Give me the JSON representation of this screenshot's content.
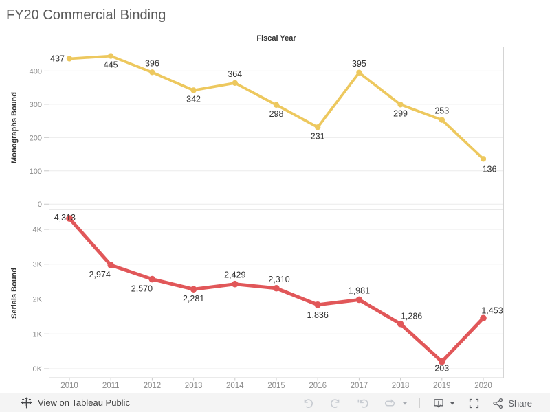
{
  "title": "FY20 Commercial Binding",
  "colors": {
    "monographs_line": "#EDC85E",
    "serials_line": "#E15759",
    "data_label": "#333333",
    "tick_label": "#8a8a8a",
    "gridline": "#ebebeb",
    "panel_border": "#d4d4d4",
    "tick_mark": "#c9c9c9",
    "toolbar_disabled_icon": "#c7cbd1",
    "toolbar_active_icon": "#5e6065"
  },
  "footer": {
    "view_on_label": "View on Tableau Public",
    "share_label": "Share",
    "icons": [
      "tableau-logo",
      "undo",
      "redo",
      "reset",
      "refresh",
      "refresh-caret",
      "separator",
      "download",
      "download-caret",
      "fullscreen",
      "share"
    ]
  },
  "chart_data": [
    {
      "type": "line",
      "panel": "monographs",
      "title": "Fiscal Year",
      "ylabel": "Monographs Bound",
      "categories": [
        "2010",
        "2011",
        "2012",
        "2013",
        "2014",
        "2015",
        "2016",
        "2017",
        "2018",
        "2019",
        "2020"
      ],
      "values": [
        437,
        445,
        396,
        342,
        364,
        298,
        231,
        395,
        299,
        253,
        136
      ],
      "value_labels": [
        "437",
        "445",
        "396",
        "342",
        "364",
        "298",
        "231",
        "395",
        "299",
        "253",
        "136"
      ],
      "yticks": [
        0,
        100,
        200,
        300,
        400
      ],
      "ytick_labels": [
        "0",
        "100",
        "200",
        "300",
        "400"
      ],
      "ylim": [
        -16,
        472
      ],
      "grid": "horizontal",
      "legend": "none",
      "color": "#EDC85E",
      "label_anchors": [
        "end",
        "middle",
        "middle",
        "middle",
        "middle",
        "middle",
        "middle",
        "middle",
        "middle",
        "middle",
        "middle"
      ],
      "label_dx": [
        -7,
        0,
        0,
        0,
        0,
        0,
        0,
        0,
        0,
        0,
        9
      ],
      "label_dy": [
        4,
        17,
        -9,
        17,
        -9,
        17,
        17,
        -9,
        17,
        -9,
        19
      ]
    },
    {
      "type": "line",
      "panel": "serials",
      "ylabel": "Serials Bound",
      "categories": [
        "2010",
        "2011",
        "2012",
        "2013",
        "2014",
        "2015",
        "2016",
        "2017",
        "2018",
        "2019",
        "2020"
      ],
      "values": [
        4313,
        2974,
        2570,
        2281,
        2429,
        2310,
        1836,
        1981,
        1286,
        203,
        1453
      ],
      "value_labels": [
        "4,313",
        "2,974",
        "2,570",
        "2,281",
        "2,429",
        "2,310",
        "1,836",
        "1,981",
        "1,286",
        "203",
        "1,453"
      ],
      "yticks": [
        0,
        1000,
        2000,
        3000,
        4000
      ],
      "ytick_labels": [
        "0K",
        "1K",
        "2K",
        "3K",
        "4K"
      ],
      "ylim": [
        -256,
        4571
      ],
      "grid": "horizontal",
      "legend": "none",
      "color": "#E15759",
      "label_anchors": [
        "end",
        "middle",
        "middle",
        "middle",
        "middle",
        "middle",
        "middle",
        "middle",
        "middle",
        "middle",
        "middle"
      ],
      "label_dx": [
        9,
        -16,
        -15,
        0,
        0,
        4,
        0,
        0,
        16,
        0,
        13
      ],
      "label_dy": [
        3,
        18,
        18,
        18,
        -9,
        -9,
        19,
        -9,
        -7,
        14,
        -7
      ]
    }
  ]
}
